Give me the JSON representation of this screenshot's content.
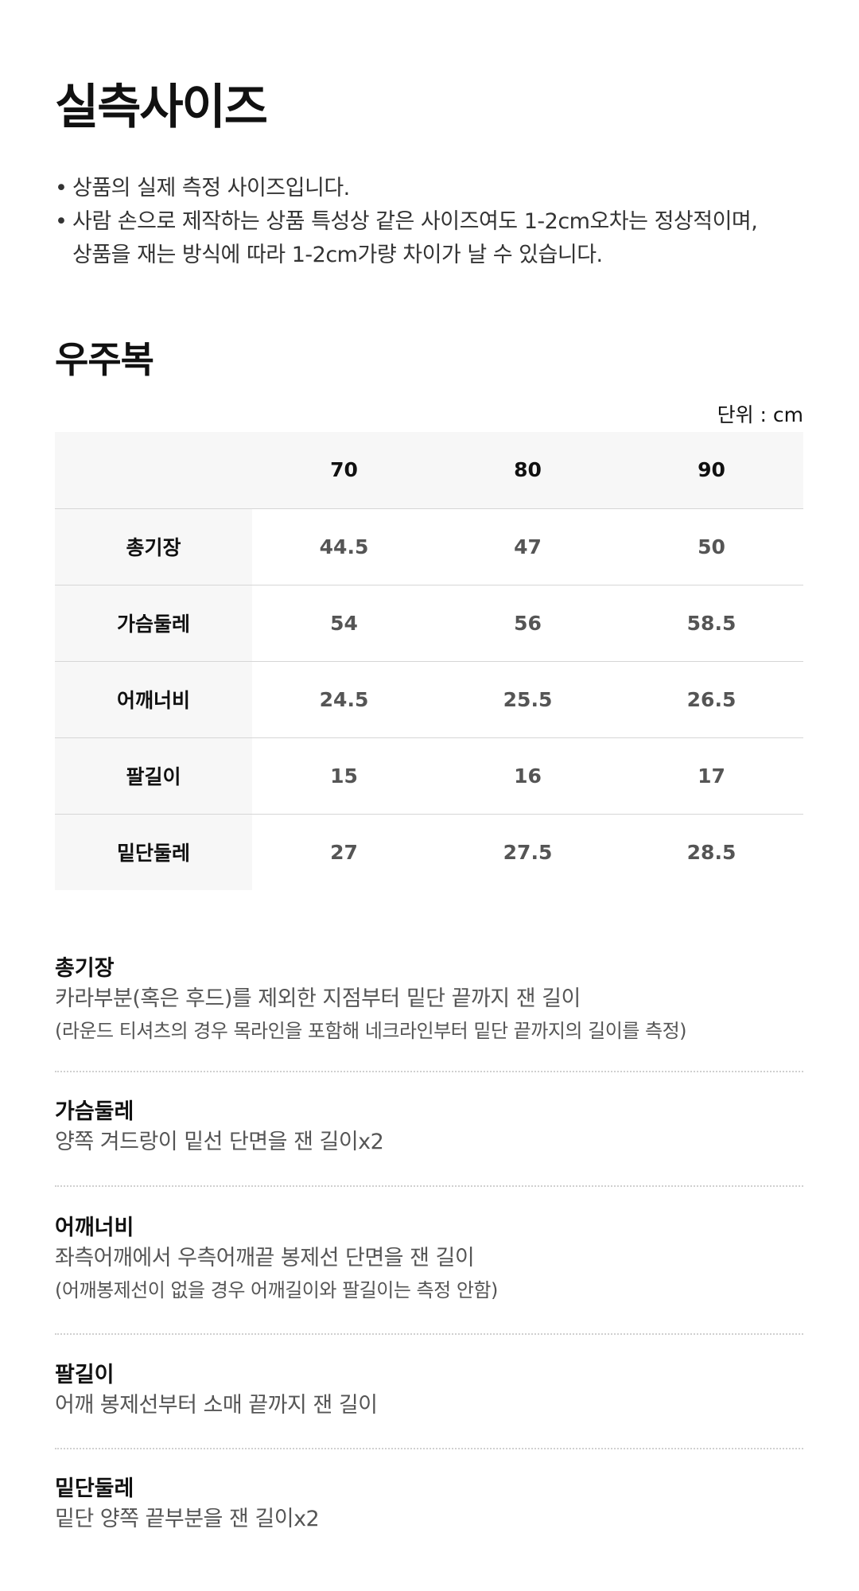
{
  "title": "실측사이즈",
  "notes": [
    "상품의 실제 측정 사이즈입니다.",
    "사람 손으로 제작하는 상품 특성상 같은 사이즈여도 1-2cm오차는 정상적이며,",
    "상품을 재는 방식에 따라 1-2cm가량 차이가 날 수 있습니다."
  ],
  "product": "우주복",
  "unit": "단위 : cm",
  "table": {
    "headers": [
      "",
      "70",
      "80",
      "90"
    ],
    "rows": [
      [
        "총기장",
        "44.5",
        "47",
        "50"
      ],
      [
        "가슴둘레",
        "54",
        "56",
        "58.5"
      ],
      [
        "어깨너비",
        "24.5",
        "25.5",
        "26.5"
      ],
      [
        "팔길이",
        "15",
        "16",
        "17"
      ],
      [
        "밑단둘레",
        "27",
        "27.5",
        "28.5"
      ]
    ]
  },
  "descriptions": [
    {
      "title": "총기장",
      "text": "카라부분(혹은 후드)를 제외한 지점부터 밑단 끝까지 잰 길이",
      "note": "(라운드 티셔츠의 경우 목라인을 포함해 네크라인부터 밑단 끝까지의 길이를 측정)"
    },
    {
      "title": "가슴둘레",
      "text": "양쪽 겨드랑이 밑선 단면을 잰 길이x2"
    },
    {
      "title": "어깨너비",
      "text": "좌측어깨에서 우측어깨끝 봉제선 단면을 잰 길이",
      "note": "(어깨봉제선이 없을 경우 어깨길이와 팔길이는 측정 안함)"
    },
    {
      "title": "팔길이",
      "text": "어깨 봉제선부터 소매 끝까지 잰 길이"
    },
    {
      "title": "밑단둘레",
      "text": "밑단 양쪽 끝부분을 잰 길이x2"
    }
  ]
}
